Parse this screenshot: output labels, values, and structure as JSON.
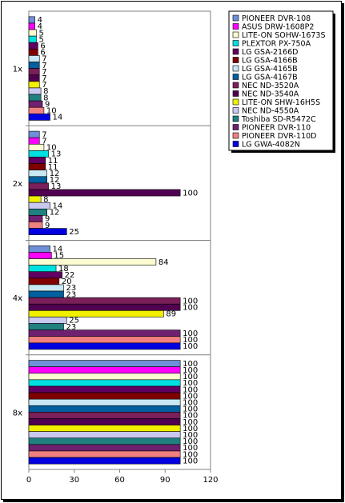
{
  "chart_data": {
    "type": "bar",
    "orientation": "horizontal",
    "categories": [
      "1x",
      "2x",
      "4x",
      "8x"
    ],
    "xlim": [
      0,
      120
    ],
    "xticks": [
      0,
      30,
      60,
      90,
      120
    ],
    "grid": "category separators",
    "legend_position": "right",
    "series": [
      {
        "name": "PIONEER DVR-108",
        "color": "#6f8fd8",
        "values": [
          4,
          7,
          14,
          100
        ]
      },
      {
        "name": "ASUS DRW-1608P2",
        "color": "#ff00ff",
        "values": [
          4,
          7,
          15,
          100
        ]
      },
      {
        "name": "LITE-ON SOHW-1673S",
        "color": "#fcfcd0",
        "values": [
          5,
          10,
          84,
          100
        ]
      },
      {
        "name": "PLEXTOR PX-750A",
        "color": "#00e0e0",
        "values": [
          5,
          13,
          18,
          100
        ]
      },
      {
        "name": "LG GSA-2166D",
        "color": "#600060",
        "values": [
          6,
          11,
          22,
          100
        ]
      },
      {
        "name": "LG GSA-4166B",
        "color": "#800000",
        "values": [
          6,
          11,
          20,
          100
        ]
      },
      {
        "name": "LG GSA-4165B",
        "color": "#c8e8f4",
        "values": [
          7,
          12,
          23,
          100
        ]
      },
      {
        "name": "LG GSA-4167B",
        "color": "#0060a0",
        "values": [
          7,
          12,
          23,
          100
        ]
      },
      {
        "name": "NEC ND-3520A",
        "color": "#7a1f5a",
        "values": [
          7,
          13,
          100,
          100
        ]
      },
      {
        "name": "NEC ND-3540A",
        "color": "#500050",
        "values": [
          7,
          100,
          100,
          100
        ]
      },
      {
        "name": "LITE-ON SHW-16H5S",
        "color": "#f0f000",
        "values": [
          7,
          8,
          89,
          100
        ]
      },
      {
        "name": "NEC ND-4550A",
        "color": "#c8c8f0",
        "values": [
          8,
          14,
          25,
          100
        ]
      },
      {
        "name": "Toshiba SD-R5472C",
        "color": "#208080",
        "values": [
          8,
          12,
          23,
          100
        ]
      },
      {
        "name": "PIONEER DVR-110",
        "color": "#702070",
        "values": [
          9,
          9,
          100,
          100
        ]
      },
      {
        "name": "PIONEER DVR-110D",
        "color": "#f08080",
        "values": [
          10,
          9,
          100,
          100
        ]
      },
      {
        "name": "LG GWA-4082N",
        "color": "#0000e0",
        "values": [
          14,
          25,
          100,
          100
        ]
      }
    ]
  }
}
